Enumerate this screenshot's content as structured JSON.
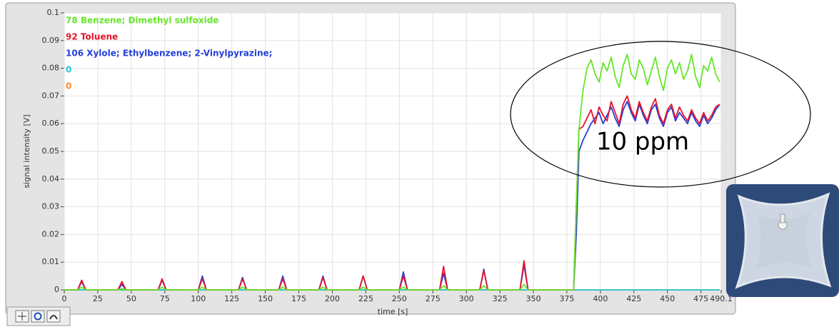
{
  "chart_data": {
    "type": "line",
    "xlabel": "time [s]",
    "ylabel": "signal intensity [V]",
    "x": [
      0,
      10,
      13,
      16,
      40,
      43,
      46,
      70,
      73,
      76,
      100,
      103,
      106,
      130,
      133,
      136,
      160,
      163,
      166,
      190,
      193,
      196,
      220,
      223,
      226,
      250,
      253,
      256,
      280,
      283,
      286,
      310,
      313,
      316,
      340,
      343,
      346,
      380,
      382,
      384,
      387,
      390,
      393,
      396,
      399,
      402,
      405,
      408,
      411,
      414,
      417,
      420,
      423,
      426,
      429,
      432,
      435,
      438,
      441,
      444,
      447,
      450,
      453,
      456,
      459,
      462,
      465,
      468,
      471,
      474,
      477,
      480,
      483,
      486,
      489
    ],
    "series": [
      {
        "name": "78 Benzene; Dimethyl sulfoxide",
        "color": "#66e62a",
        "values": [
          0,
          0,
          0.001,
          0,
          0,
          0.0005,
          0,
          0,
          0.001,
          0,
          0,
          0.001,
          0,
          0,
          0.001,
          0,
          0,
          0.001,
          0,
          0,
          0.001,
          0,
          0,
          0.001,
          0,
          0,
          0.001,
          0,
          0,
          0.0015,
          0,
          0,
          0.0015,
          0,
          0,
          0.002,
          0,
          0,
          0.03,
          0.058,
          0.072,
          0.08,
          0.083,
          0.078,
          0.075,
          0.082,
          0.079,
          0.084,
          0.077,
          0.073,
          0.081,
          0.085,
          0.078,
          0.076,
          0.083,
          0.08,
          0.074,
          0.079,
          0.084,
          0.077,
          0.072,
          0.08,
          0.083,
          0.078,
          0.082,
          0.076,
          0.079,
          0.085,
          0.077,
          0.073,
          0.081,
          0.079,
          0.084,
          0.078,
          0.075
        ]
      },
      {
        "name": "92 Toluene",
        "color": "#e8132a",
        "values": [
          0,
          0,
          0.0035,
          0,
          0,
          0.003,
          0,
          0,
          0.004,
          0,
          0,
          0.004,
          0,
          0,
          0.004,
          0,
          0,
          0.004,
          0,
          0,
          0.0045,
          0,
          0,
          0.005,
          0,
          0,
          0.005,
          0,
          0,
          0.0085,
          0,
          0,
          0.007,
          0,
          0,
          0.0105,
          0,
          0,
          0.03,
          0.058,
          0.059,
          0.062,
          0.065,
          0.06,
          0.066,
          0.063,
          0.061,
          0.068,
          0.064,
          0.06,
          0.067,
          0.07,
          0.065,
          0.062,
          0.068,
          0.064,
          0.061,
          0.066,
          0.069,
          0.063,
          0.06,
          0.065,
          0.067,
          0.062,
          0.066,
          0.063,
          0.061,
          0.065,
          0.062,
          0.06,
          0.064,
          0.061,
          0.063,
          0.066,
          0.067
        ]
      },
      {
        "name": "106 Xylole; Ethylbenzene; 2-Vinylpyrazine;",
        "color": "#2540d8",
        "values": [
          0,
          0,
          0.003,
          0,
          0,
          0.002,
          0,
          0,
          0.0035,
          0,
          0,
          0.005,
          0,
          0,
          0.0045,
          0,
          0,
          0.005,
          0,
          0,
          0.005,
          0,
          0,
          0.005,
          0,
          0,
          0.0065,
          0,
          0,
          0.006,
          0,
          0,
          0.0075,
          0,
          0,
          0.009,
          0,
          0,
          0.02,
          0.05,
          0.054,
          0.057,
          0.06,
          0.062,
          0.064,
          0.06,
          0.063,
          0.066,
          0.062,
          0.059,
          0.065,
          0.068,
          0.064,
          0.061,
          0.067,
          0.063,
          0.06,
          0.065,
          0.067,
          0.062,
          0.059,
          0.064,
          0.066,
          0.061,
          0.064,
          0.062,
          0.06,
          0.064,
          0.061,
          0.059,
          0.063,
          0.06,
          0.062,
          0.065,
          0.067
        ]
      },
      {
        "name": "0",
        "color": "#1ec8d8",
        "values": [
          0,
          0,
          0,
          0,
          0,
          0,
          0,
          0,
          0,
          0,
          0,
          0,
          0,
          0,
          0,
          0,
          0,
          0,
          0,
          0,
          0,
          0,
          0,
          0,
          0,
          0,
          0,
          0,
          0,
          0,
          0,
          0,
          0,
          0,
          0,
          0,
          0,
          0,
          0,
          0,
          0,
          0,
          0,
          0,
          0,
          0,
          0,
          0,
          0,
          0,
          0,
          0,
          0,
          0,
          0,
          0,
          0,
          0,
          0,
          0,
          0,
          0,
          0,
          0,
          0,
          0,
          0,
          0,
          0,
          0,
          0,
          0,
          0,
          0,
          0
        ]
      },
      {
        "name": "0",
        "color": "#ff8a1e",
        "values": [
          0,
          0,
          0,
          0,
          0,
          0,
          0,
          0,
          0,
          0,
          0,
          0,
          0,
          0,
          0,
          0,
          0,
          0,
          0,
          0,
          0,
          0,
          0,
          0,
          0,
          0,
          0,
          0,
          0,
          0,
          0,
          0,
          0,
          0,
          0,
          0,
          0,
          0,
          0,
          0,
          0,
          0,
          0,
          0,
          0,
          0,
          0,
          0,
          0,
          0,
          0,
          0,
          0,
          0,
          0,
          0,
          0,
          0,
          0,
          0,
          0,
          0,
          0,
          0,
          0,
          0,
          0,
          0,
          0,
          0,
          0,
          0,
          0,
          0,
          0
        ]
      }
    ],
    "xlim": [
      0,
      490.1
    ],
    "xticks": [
      0,
      25,
      50,
      75,
      100,
      125,
      150,
      175,
      200,
      225,
      250,
      275,
      300,
      325,
      350,
      375,
      400,
      425,
      450,
      475,
      490.1
    ],
    "ylim": [
      0,
      0.1
    ],
    "yticks": [
      0,
      0.01,
      0.02,
      0.03,
      0.04,
      0.05,
      0.06,
      0.07,
      0.08,
      0.09,
      0.1
    ],
    "grid": true,
    "legend": "upper left",
    "annotation": "10 ppm"
  }
}
